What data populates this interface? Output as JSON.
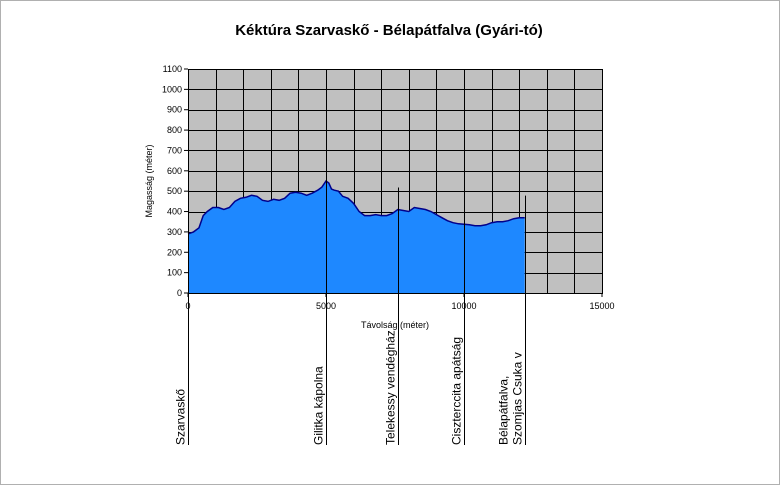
{
  "chart_data": {
    "type": "area",
    "title": "Kéktúra Szarvaskő - Bélapátfalva (Gyári-tó)",
    "xlabel": "Távolság (méter)",
    "ylabel": "Magasság (méter)",
    "xlim": [
      0,
      15000
    ],
    "ylim": [
      0,
      1100
    ],
    "xticks": [
      0,
      5000,
      10000,
      15000
    ],
    "yticks": [
      0,
      100,
      200,
      300,
      400,
      500,
      600,
      700,
      800,
      900,
      1000,
      1100
    ],
    "grid": true,
    "legend": "none",
    "colors": {
      "fill": "#1e88ff",
      "line": "#00008b",
      "plot_bg": "#c0c0c0",
      "grid": "#000000"
    },
    "series": [
      {
        "x": [
          0,
          200,
          400,
          550,
          700,
          900,
          1100,
          1300,
          1500,
          1700,
          1900,
          2100,
          2300,
          2500,
          2700,
          2900,
          3100,
          3300,
          3500,
          3700,
          3900,
          4100,
          4300,
          4500,
          4700,
          4850,
          5000,
          5100,
          5200,
          5300,
          5450,
          5600,
          5800,
          6000,
          6200,
          6400,
          6600,
          6800,
          7000,
          7200,
          7400,
          7600,
          7800,
          8000,
          8200,
          8400,
          8600,
          8800,
          9000,
          9200,
          9400,
          9600,
          9800,
          10000,
          10200,
          10400,
          10600,
          10800,
          11000,
          11200,
          11400,
          11600,
          11800,
          12000,
          12200
        ],
        "values": [
          290,
          300,
          320,
          380,
          400,
          420,
          420,
          410,
          420,
          450,
          465,
          470,
          480,
          475,
          455,
          450,
          460,
          455,
          465,
          490,
          495,
          490,
          480,
          490,
          505,
          520,
          550,
          540,
          510,
          505,
          500,
          475,
          465,
          440,
          400,
          380,
          380,
          385,
          380,
          380,
          390,
          410,
          405,
          400,
          420,
          415,
          410,
          400,
          385,
          370,
          355,
          345,
          340,
          338,
          335,
          330,
          330,
          335,
          345,
          350,
          350,
          355,
          365,
          370,
          370
        ]
      }
    ],
    "markers": [
      {
        "x": 0,
        "label": "Szarvaskő"
      },
      {
        "x": 5000,
        "label": "Gilitka kápolna"
      },
      {
        "x": 7600,
        "label": "Telekessy vendégház"
      },
      {
        "x": 10000,
        "label": "Ciszterccita apátság"
      },
      {
        "x": 12200,
        "label": "Bélapátfalva, Szomjas Csuka v"
      }
    ]
  }
}
